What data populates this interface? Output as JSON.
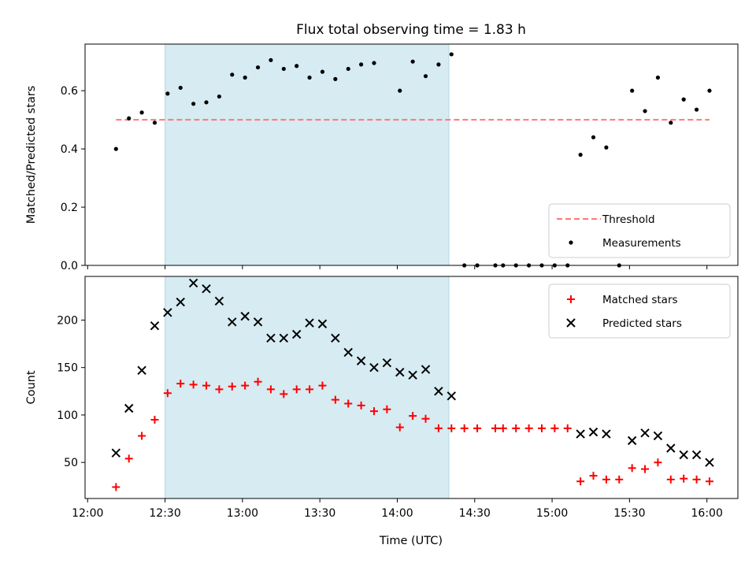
{
  "chart_data": {
    "title": "Flux total observing time = 1.83 h",
    "xlabel": "Time (UTC)",
    "x_ticks": [
      "12:00",
      "12:30",
      "13:00",
      "13:30",
      "14:00",
      "14:30",
      "15:00",
      "15:30",
      "16:00"
    ],
    "x_range": [
      "11:59",
      "16:12"
    ],
    "shaded_window": {
      "start": "12:30",
      "end": "14:20",
      "color": "#add8e6"
    },
    "panels": [
      {
        "type": "scatter",
        "ylabel": "Matched/Predicted stars",
        "ylim": [
          0,
          0.76
        ],
        "y_ticks": [
          0.0,
          0.2,
          0.4,
          0.6
        ],
        "legend_position": "lower-right",
        "threshold": {
          "name": "Threshold",
          "value": 0.5,
          "x_start": "12:11",
          "x_end": "16:01",
          "color": "#ff7777",
          "style": "dashed"
        },
        "series": [
          {
            "name": "Measurements",
            "marker": "dot",
            "color": "#000000",
            "x": [
              "12:11",
              "12:16",
              "12:21",
              "12:26",
              "12:31",
              "12:36",
              "12:41",
              "12:46",
              "12:51",
              "12:56",
              "13:01",
              "13:06",
              "13:11",
              "13:16",
              "13:21",
              "13:26",
              "13:31",
              "13:36",
              "13:41",
              "13:46",
              "13:51",
              "14:01",
              "14:06",
              "14:11",
              "14:16",
              "14:21",
              "14:26",
              "14:31",
              "14:38",
              "14:41",
              "14:46",
              "14:51",
              "14:56",
              "15:01",
              "15:06",
              "15:11",
              "15:16",
              "15:21",
              "15:26",
              "15:31",
              "15:36",
              "15:41",
              "15:46",
              "15:51",
              "15:56",
              "16:01"
            ],
            "y": [
              0.4,
              0.505,
              0.525,
              0.49,
              0.59,
              0.61,
              0.555,
              0.56,
              0.58,
              0.655,
              0.645,
              0.68,
              0.705,
              0.675,
              0.685,
              0.645,
              0.665,
              0.64,
              0.675,
              0.69,
              0.695,
              0.6,
              0.7,
              0.65,
              0.69,
              0.725,
              0.0,
              0.0,
              0.0,
              0.0,
              0.0,
              0.0,
              0.0,
              0.0,
              0.0,
              0.38,
              0.44,
              0.405,
              0.0,
              0.6,
              0.53,
              0.645,
              0.49,
              0.57,
              0.535,
              0.6
            ]
          }
        ]
      },
      {
        "type": "scatter",
        "ylabel": "Count",
        "ylim": [
          12,
          246
        ],
        "y_ticks": [
          50,
          100,
          150,
          200
        ],
        "legend_position": "upper-right",
        "series": [
          {
            "name": "Matched stars",
            "marker": "plus",
            "color": "#ff0000",
            "x": [
              "12:11",
              "12:16",
              "12:21",
              "12:26",
              "12:31",
              "12:36",
              "12:41",
              "12:46",
              "12:51",
              "12:56",
              "13:01",
              "13:06",
              "13:11",
              "13:16",
              "13:21",
              "13:26",
              "13:31",
              "13:36",
              "13:41",
              "13:46",
              "13:51",
              "13:56",
              "14:01",
              "14:06",
              "14:11",
              "14:16",
              "14:21",
              "14:26",
              "14:31",
              "14:38",
              "14:41",
              "14:46",
              "14:51",
              "14:56",
              "15:01",
              "15:06",
              "15:11",
              "15:16",
              "15:21",
              "15:26",
              "15:31",
              "15:36",
              "15:41",
              "15:46",
              "15:51",
              "15:56",
              "16:01"
            ],
            "y": [
              24,
              54,
              78,
              95,
              123,
              133,
              132,
              131,
              127,
              130,
              131,
              135,
              127,
              122,
              127,
              127,
              131,
              116,
              112,
              110,
              104,
              106,
              87,
              99,
              96,
              86,
              86,
              86,
              86,
              86,
              86,
              86,
              86,
              86,
              86,
              86,
              30,
              36,
              32,
              32,
              44,
              43,
              50,
              32,
              33,
              32,
              30
            ]
          },
          {
            "name": "Predicted stars",
            "marker": "x",
            "color": "#000000",
            "x": [
              "12:11",
              "12:16",
              "12:21",
              "12:26",
              "12:31",
              "12:36",
              "12:41",
              "12:46",
              "12:51",
              "12:56",
              "13:01",
              "13:06",
              "13:11",
              "13:16",
              "13:21",
              "13:26",
              "13:31",
              "13:36",
              "13:41",
              "13:46",
              "13:51",
              "13:56",
              "14:01",
              "14:06",
              "14:11",
              "14:16",
              "14:21",
              "15:11",
              "15:16",
              "15:21",
              "15:31",
              "15:36",
              "15:41",
              "15:46",
              "15:51",
              "15:56",
              "16:01"
            ],
            "y": [
              60,
              107,
              147,
              194,
              208,
              219,
              239,
              233,
              220,
              198,
              204,
              198,
              181,
              181,
              185,
              197,
              196,
              181,
              166,
              157,
              150,
              155,
              145,
              142,
              148,
              125,
              120,
              80,
              82,
              80,
              73,
              81,
              78,
              65,
              58,
              58,
              50
            ]
          }
        ]
      }
    ]
  }
}
